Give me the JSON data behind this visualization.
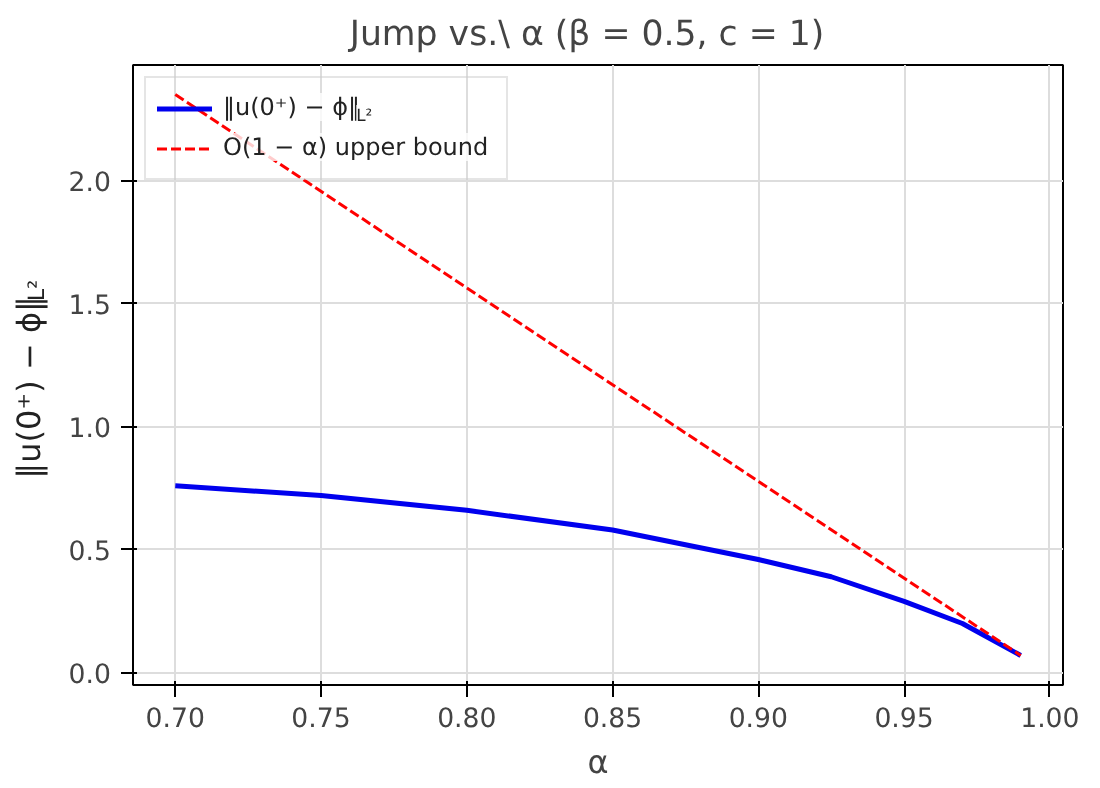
{
  "chart_data": {
    "type": "line",
    "title": "Jump vs.\\ α  (β = 0.5,  c = 1)",
    "xlabel": "α",
    "ylabel": "‖u(0⁺) − ϕ‖$_{L²}$",
    "xlim": [
      0.6855,
      1.0045
    ],
    "ylim": [
      -0.05,
      2.47
    ],
    "xticks": [
      {
        "value": 0.7,
        "label": "0.70"
      },
      {
        "value": 0.75,
        "label": "0.75"
      },
      {
        "value": 0.8,
        "label": "0.80"
      },
      {
        "value": 0.85,
        "label": "0.85"
      },
      {
        "value": 0.9,
        "label": "0.90"
      },
      {
        "value": 0.95,
        "label": "0.95"
      },
      {
        "value": 1.0,
        "label": "1.00"
      }
    ],
    "yticks": [
      {
        "value": 0,
        "label": "0.0"
      },
      {
        "value": 0.5,
        "label": "0.5"
      },
      {
        "value": 1.0,
        "label": "1.0"
      },
      {
        "value": 1.5,
        "label": "1.5"
      },
      {
        "value": 2.0,
        "label": "2.0"
      }
    ],
    "grid": true,
    "legend": "top left",
    "series": [
      {
        "name": "‖u(0⁺) − ϕ‖$_{L²}$",
        "color": "#0000ee",
        "line_style": "solid",
        "x": [
          0.7,
          0.75,
          0.8,
          0.85,
          0.9,
          0.925,
          0.95,
          0.97,
          0.99
        ],
        "values": [
          0.76,
          0.72,
          0.66,
          0.58,
          0.46,
          0.39,
          0.29,
          0.2,
          0.07
        ]
      },
      {
        "name": "O(1 − α) upper bound",
        "color": "#ff0000",
        "line_style": "dashed",
        "x": [
          0.7,
          0.99
        ],
        "values": [
          2.35,
          0.07
        ]
      }
    ]
  }
}
